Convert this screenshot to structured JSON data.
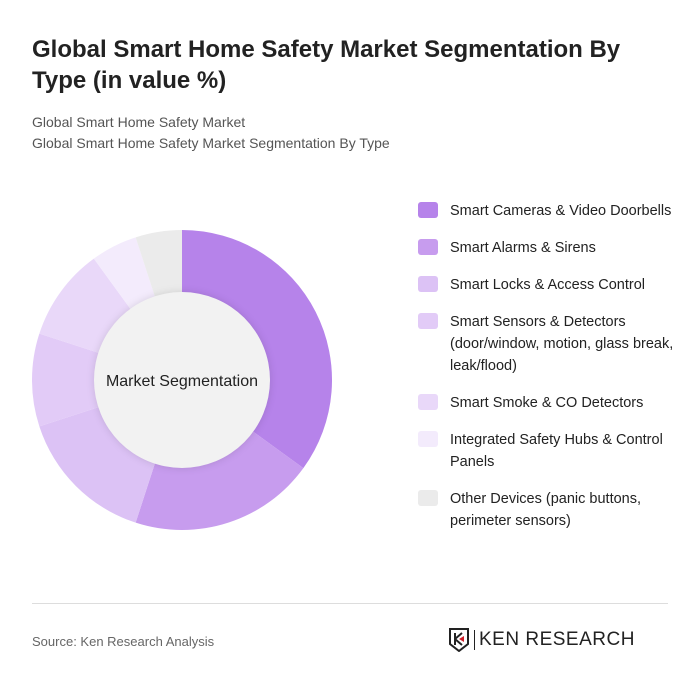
{
  "title": "Global Smart Home Safety Market Segmentation By Type (in value %)",
  "subtitle1": "Global Smart Home Safety Market",
  "subtitle2": "Global Smart Home Safety Market Segmentation By Type",
  "source": "Source: Ken Research Analysis",
  "logo_text": "KEN RESEARCH",
  "chart_data": {
    "type": "pie",
    "variant": "donut",
    "center_label": "Market Segmentation",
    "legend_position": "right",
    "categories": [
      "Smart Cameras & Video Doorbells",
      "Smart Alarms & Sirens",
      "Smart Locks & Access Control",
      "Smart Sensors & Detectors (door/window, motion, glass break, leak/flood)",
      "Smart Smoke & CO Detectors",
      "Integrated Safety Hubs & Control Panels",
      "Other Devices (panic buttons, perimeter sensors)"
    ],
    "values": [
      35,
      20,
      15,
      10,
      10,
      5,
      5
    ],
    "colors": [
      "#b683ea",
      "#c79cee",
      "#dcc2f5",
      "#e2cbf7",
      "#e9d8f9",
      "#f3ebfc",
      "#ebebeb"
    ]
  }
}
